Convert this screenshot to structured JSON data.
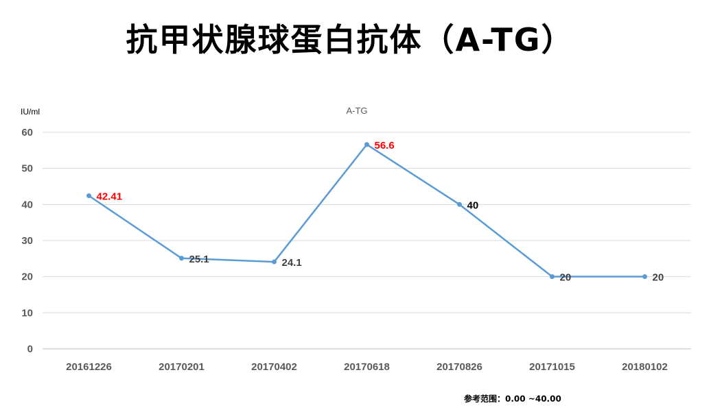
{
  "title": "抗甲状腺球蛋白抗体（A-TG）",
  "unit": "IU/ml",
  "footnote": "参考范围：0.00 ~40.00",
  "colors": {
    "line": "#5b9bd5",
    "high": "#ff0000",
    "normal": "#404040",
    "grid": "#d9d9d9"
  },
  "chart_data": {
    "type": "line",
    "title": "A-TG",
    "ylabel": "IU/ml",
    "xlabel": "",
    "categories": [
      "20161226",
      "20170201",
      "20170402",
      "20170618",
      "20170826",
      "20171015",
      "20180102"
    ],
    "series": [
      {
        "name": "A-TG",
        "values": [
          42.41,
          25.1,
          24.1,
          56.6,
          40,
          20,
          20
        ]
      }
    ],
    "data_labels": [
      "42.41",
      "25.1",
      "24.1",
      "56.6",
      "40",
      "20",
      "20"
    ],
    "label_colors": [
      "#ff0000",
      "#404040",
      "#404040",
      "#ff0000",
      "#000000",
      "#404040",
      "#404040"
    ],
    "ylim": [
      0,
      60
    ],
    "yticks": [
      0,
      10,
      20,
      30,
      40,
      50,
      60
    ],
    "grid": true,
    "legend": "none"
  }
}
